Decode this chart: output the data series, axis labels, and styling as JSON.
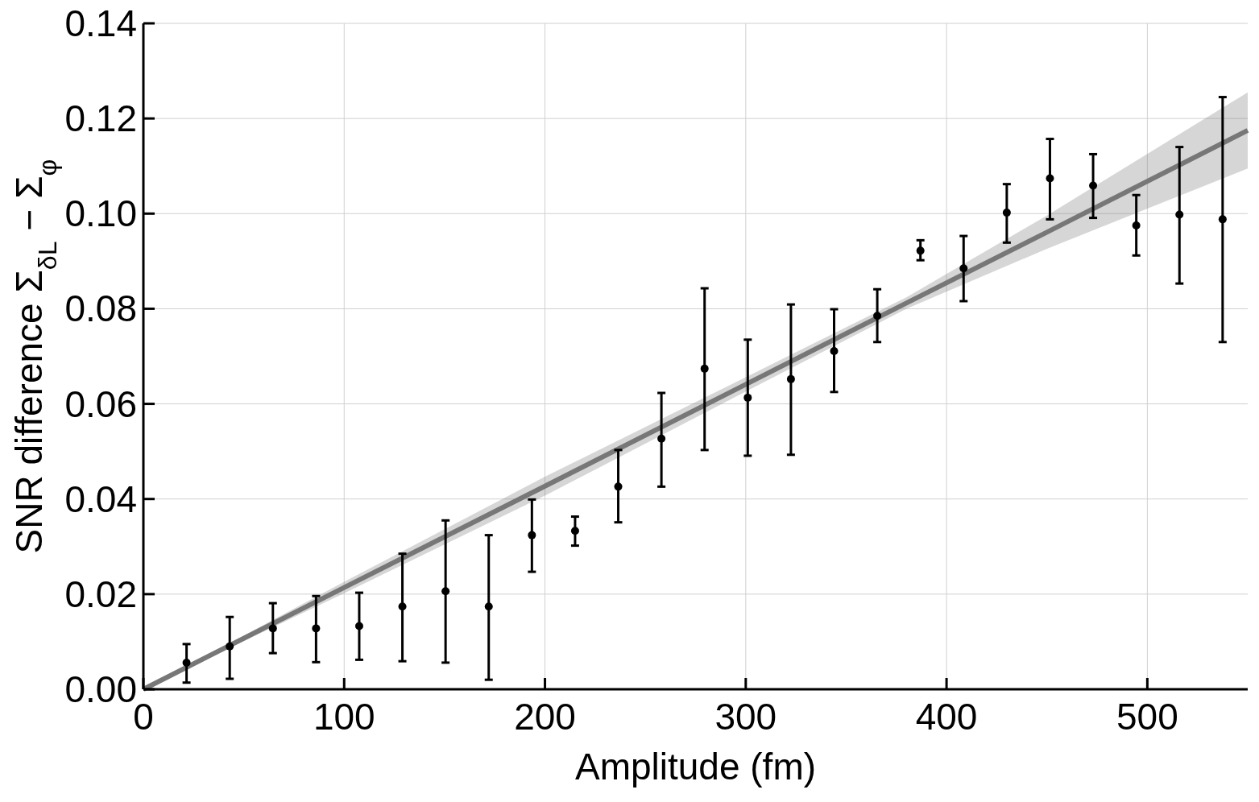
{
  "chart_data": {
    "type": "scatter",
    "xlabel": "Amplitude (fm)",
    "ylabel": "SNR difference  Σ$_{δL}$ − Σ$_{φ}$",
    "xlim": [
      0,
      550
    ],
    "xticks": [
      0,
      100,
      200,
      300,
      400,
      500
    ],
    "ylim": [
      0,
      0.14
    ],
    "yticks": [
      {
        "value": 0,
        "label": "0.00"
      },
      {
        "value": 0.02,
        "label": "0.02"
      },
      {
        "value": 0.04,
        "label": "0.04"
      },
      {
        "value": 0.06,
        "label": "0.06"
      },
      {
        "value": 0.08,
        "label": "0.08"
      },
      {
        "value": 0.1,
        "label": "0.10"
      },
      {
        "value": 0.12,
        "label": "0.12"
      },
      {
        "value": 0.14,
        "label": "0.14"
      }
    ],
    "grid": true,
    "marker": "circle",
    "series": [
      {
        "type": "line",
        "color": "#777777",
        "line_style": "solid",
        "marker": "none",
        "x": [
          0,
          100,
          200,
          300,
          380,
          450,
          550
        ],
        "values": [
          0,
          0.0214,
          0.0427,
          0.0641,
          0.0812,
          0.0961,
          0.1175
        ],
        "lower": [
          0,
          0.0202,
          0.0407,
          0.0626,
          0.08,
          0.0926,
          0.1095
        ],
        "upper": [
          0,
          0.0226,
          0.0447,
          0.0656,
          0.0824,
          0.0996,
          0.1255
        ]
      },
      {
        "color": "#000000",
        "x": [
          21.5,
          43,
          64.5,
          86,
          107.5,
          129,
          150.5,
          172,
          193.5,
          215,
          236.5,
          258,
          279.5,
          301,
          322.5,
          344,
          365.5,
          387,
          408.5,
          430,
          451.5,
          473,
          494.5,
          516,
          537.5
        ],
        "values": [
          0.0056,
          0.009,
          0.0128,
          0.0128,
          0.0133,
          0.0174,
          0.0206,
          0.0174,
          0.0324,
          0.0333,
          0.0426,
          0.0527,
          0.0674,
          0.0613,
          0.0652,
          0.0711,
          0.0785,
          0.0922,
          0.0885,
          0.1002,
          0.1074,
          0.1059,
          0.0975,
          0.0998,
          0.0988
        ],
        "errors": [
          [
            0.0014,
            0.0095
          ],
          [
            0.0022,
            0.0152
          ],
          [
            0.0076,
            0.0181
          ],
          [
            0.0057,
            0.0196
          ],
          [
            0.0062,
            0.0203
          ],
          [
            0.0059,
            0.0285
          ],
          [
            0.0056,
            0.0355
          ],
          [
            0.002,
            0.0324
          ],
          [
            0.0247,
            0.0399
          ],
          [
            0.0302,
            0.0363
          ],
          [
            0.0351,
            0.0503
          ],
          [
            0.0426,
            0.0623
          ],
          [
            0.0503,
            0.0843
          ],
          [
            0.0491,
            0.0735
          ],
          [
            0.0493,
            0.0809
          ],
          [
            0.0625,
            0.0799
          ],
          [
            0.073,
            0.0841
          ],
          [
            0.0902,
            0.0944
          ],
          [
            0.0816,
            0.0953
          ],
          [
            0.0939,
            0.1062
          ],
          [
            0.0988,
            0.1157
          ],
          [
            0.0991,
            0.1125
          ],
          [
            0.0912,
            0.1039
          ],
          [
            0.0853,
            0.114
          ],
          [
            0.073,
            0.1245
          ]
        ]
      }
    ]
  }
}
